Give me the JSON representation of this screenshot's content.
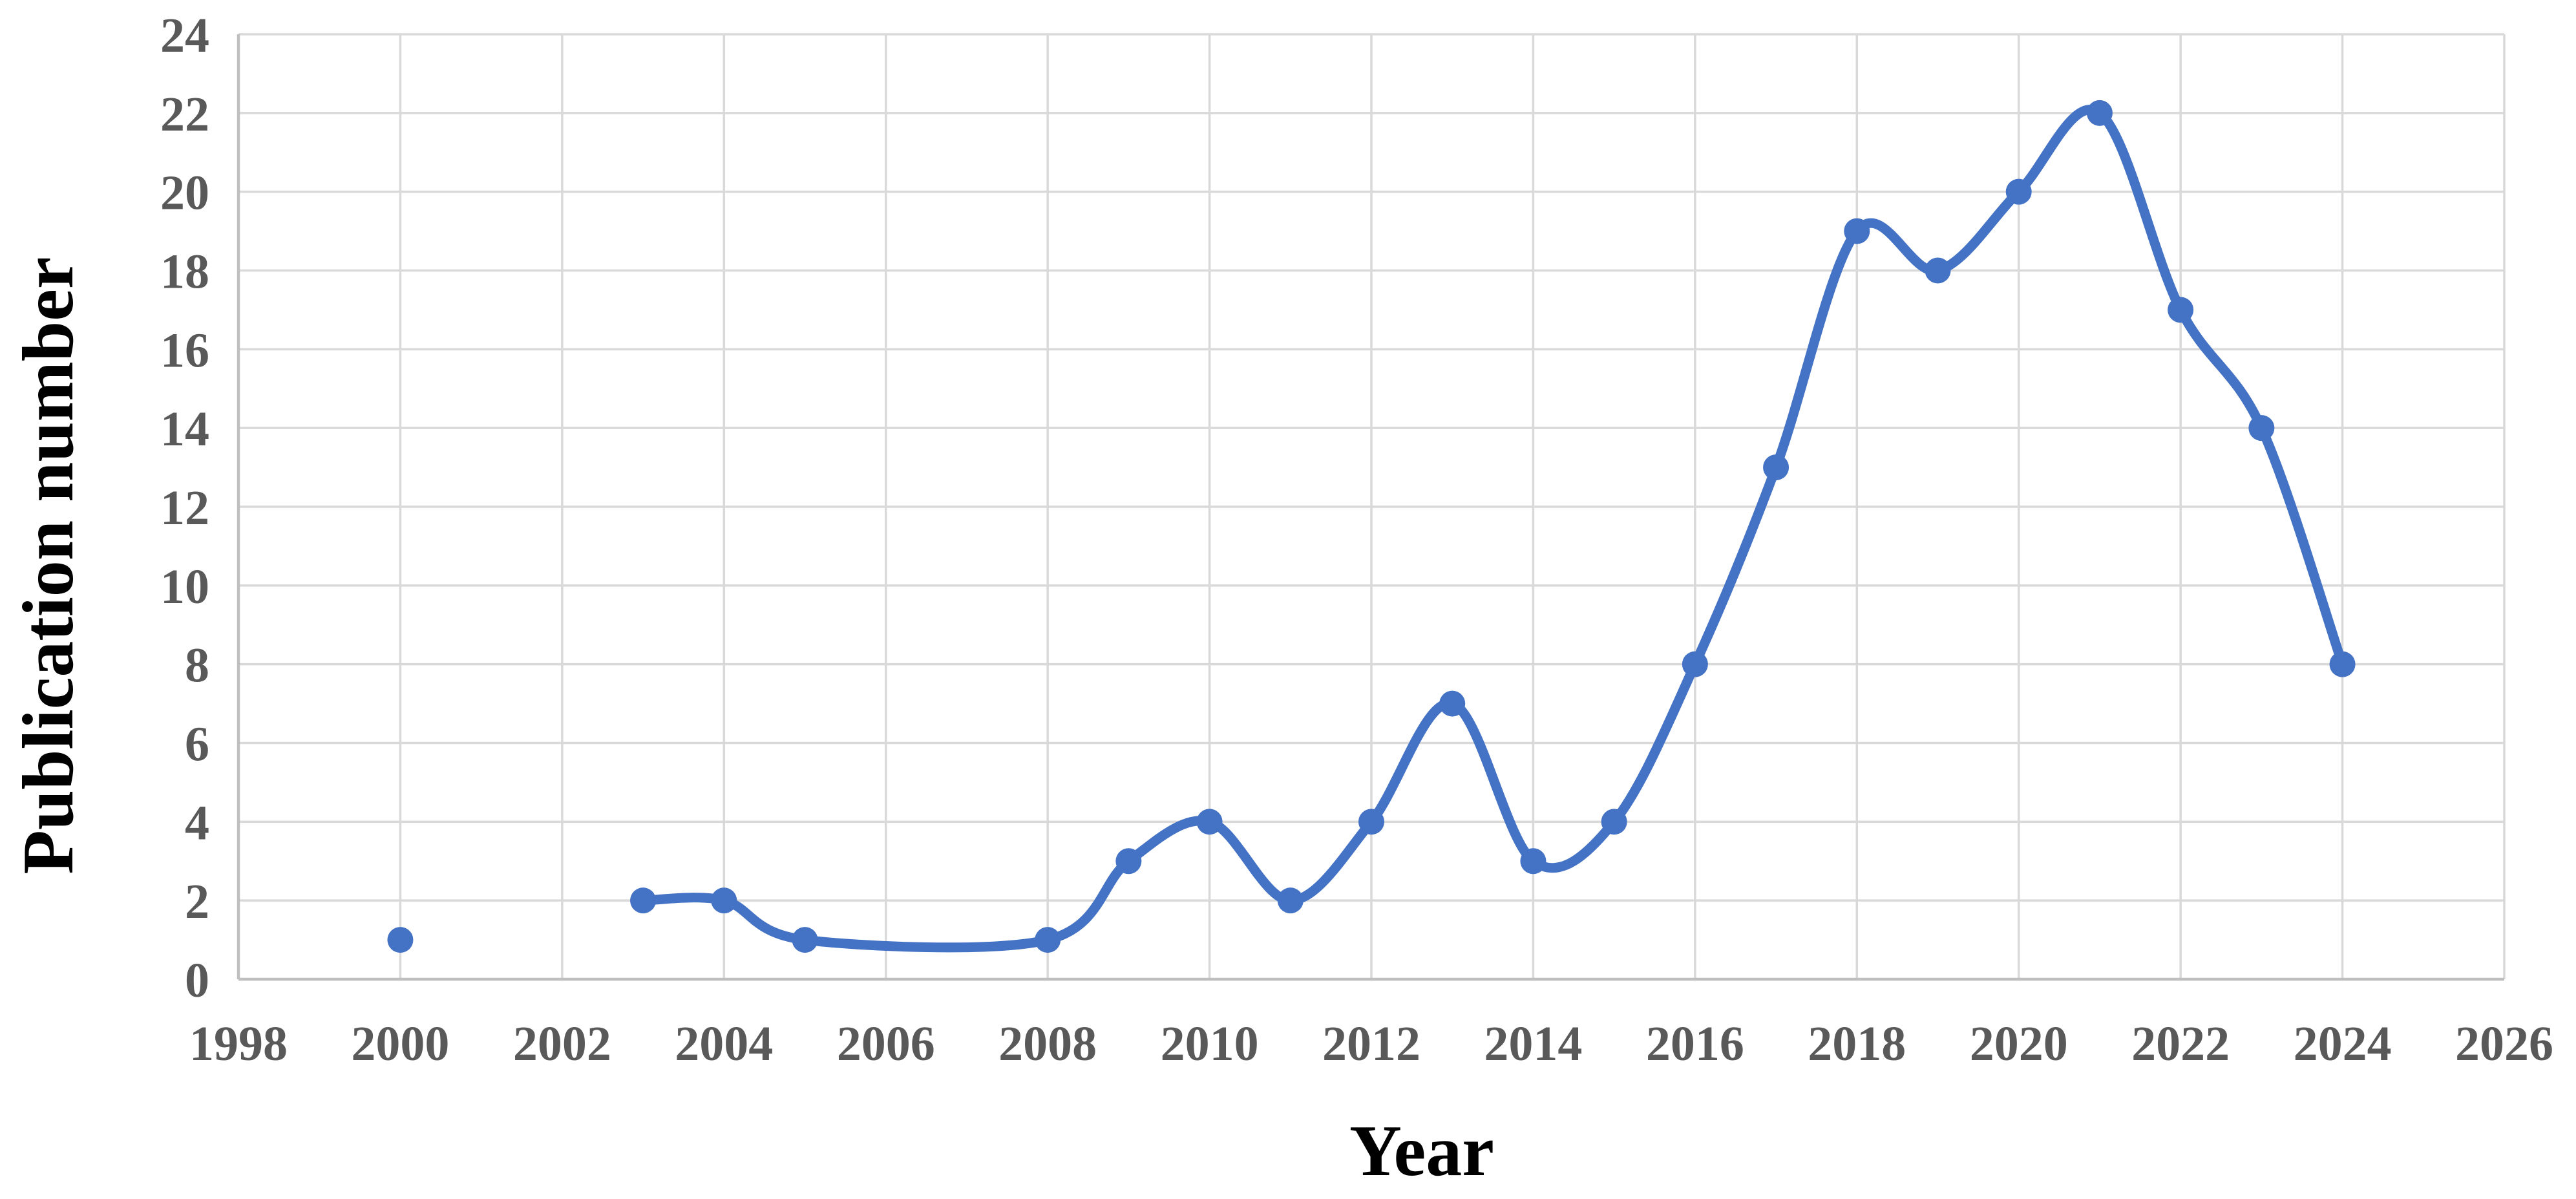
{
  "chart_data": {
    "type": "line",
    "title": "",
    "xlabel": "Year",
    "ylabel": "Publication number",
    "xlim": [
      1998,
      2026
    ],
    "xtick_step": 2,
    "ylim": [
      0,
      24
    ],
    "ytick_step": 2,
    "grid": true,
    "legend_position": "none",
    "smooth": true,
    "series": [
      {
        "name": "Publication number",
        "marker": "circle",
        "segments": [
          [
            [
              2000,
              1
            ]
          ],
          [
            [
              2003,
              2
            ],
            [
              2004,
              2
            ],
            [
              2005,
              1
            ],
            [
              2008,
              1
            ],
            [
              2009,
              3
            ],
            [
              2010,
              4
            ],
            [
              2011,
              2
            ],
            [
              2012,
              4
            ],
            [
              2013,
              7
            ],
            [
              2014,
              3
            ],
            [
              2015,
              4
            ],
            [
              2016,
              8
            ],
            [
              2017,
              13
            ],
            [
              2018,
              19
            ],
            [
              2019,
              18
            ],
            [
              2020,
              20
            ],
            [
              2021,
              22
            ],
            [
              2022,
              17
            ],
            [
              2023,
              14
            ],
            [
              2024,
              8
            ]
          ]
        ]
      }
    ],
    "style": {
      "line_color": "#4472C4",
      "marker_color": "#4472C4",
      "grid_color": "#D9D9D9",
      "axis_line_color": "#BFBFBF",
      "tick_label_color": "#595959",
      "axis_title_color": "#000000",
      "background_color": "#FFFFFF"
    }
  }
}
